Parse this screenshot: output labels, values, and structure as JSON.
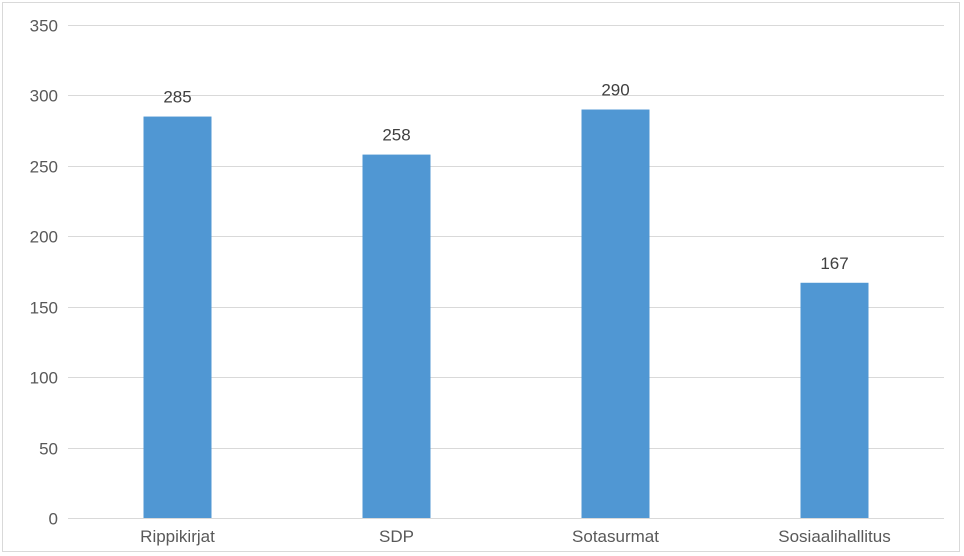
{
  "chart_data": {
    "type": "bar",
    "categories": [
      "Rippikirjat",
      "SDP",
      "Sotasurmat",
      "Sosiaalihallitus"
    ],
    "values": [
      285,
      258,
      290,
      167
    ],
    "title": "",
    "xlabel": "",
    "ylabel": "",
    "ylim": [
      0,
      350
    ],
    "yticks": [
      0,
      50,
      100,
      150,
      200,
      250,
      300,
      350
    ],
    "grid": true,
    "legend": "none",
    "data_labels": true,
    "colors": {
      "bar": "#5097d3",
      "grid": "#d9d9d9",
      "axis_text": "#595959",
      "label_text": "#404040"
    }
  }
}
